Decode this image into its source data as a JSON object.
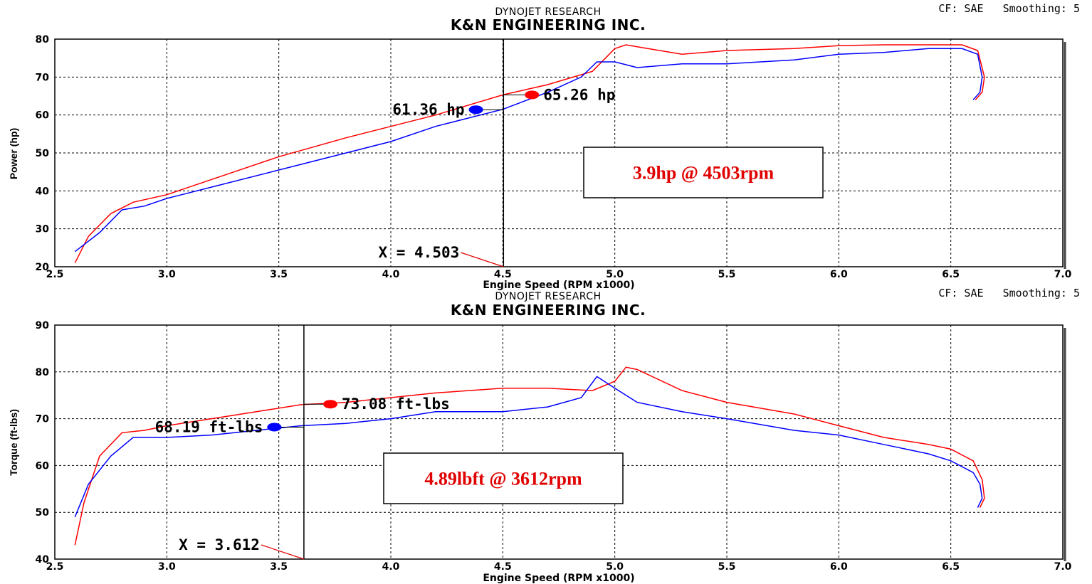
{
  "chart_data": [
    {
      "type": "line",
      "header": "DYNOJET RESEARCH",
      "title": "K&N ENGINEERING INC.",
      "corner_text": "CF: SAE   Smoothing: 5",
      "xlabel": "Engine Speed (RPM x1000)",
      "ylabel": "Power (hp)",
      "xlim": [
        2.5,
        7.0
      ],
      "ylim": [
        20,
        80
      ],
      "xticks": [
        "2.5",
        "3.0",
        "3.5",
        "4.0",
        "4.5",
        "5.0",
        "5.5",
        "6.0",
        "6.5",
        "7.0"
      ],
      "yticks": [
        "20",
        "30",
        "40",
        "50",
        "60",
        "70",
        "80"
      ],
      "grid": true,
      "cursor_x": 4.503,
      "cursor_label": "X = 4.503",
      "markers": [
        {
          "label": "61.36 hp",
          "color": "#0000ff",
          "x": 4.38,
          "y": 61.4
        },
        {
          "label": "65.26 hp",
          "color": "#ff0000",
          "x": 4.63,
          "y": 65.3
        }
      ],
      "callout": "3.9hp @ 4503rpm",
      "series": [
        {
          "color": "#ff0000",
          "x": [
            2.59,
            2.65,
            2.75,
            2.85,
            3.0,
            3.2,
            3.5,
            3.8,
            4.0,
            4.2,
            4.5,
            4.7,
            4.9,
            5.0,
            5.05,
            5.1,
            5.3,
            5.5,
            5.8,
            6.0,
            6.2,
            6.4,
            6.55,
            6.62,
            6.65,
            6.64,
            6.61
          ],
          "y": [
            21,
            28,
            34,
            37,
            39,
            43,
            49,
            54,
            57,
            60,
            65.3,
            68,
            71.5,
            77.5,
            78.5,
            78,
            76,
            77,
            77.5,
            78.3,
            78.5,
            78.5,
            78.5,
            77,
            70,
            66,
            64
          ]
        },
        {
          "color": "#0000ff",
          "x": [
            2.59,
            2.7,
            2.8,
            2.9,
            3.0,
            3.2,
            3.5,
            3.8,
            4.0,
            4.2,
            4.5,
            4.7,
            4.85,
            4.92,
            5.0,
            5.1,
            5.3,
            5.5,
            5.8,
            6.0,
            6.2,
            6.4,
            6.55,
            6.62,
            6.64,
            6.63,
            6.6
          ],
          "y": [
            24,
            29,
            35,
            36,
            38,
            41,
            45.5,
            50,
            53,
            57,
            61.5,
            66,
            70,
            74,
            74,
            72.5,
            73.5,
            73.5,
            74.5,
            76,
            76.5,
            77.5,
            77.5,
            76,
            70,
            66,
            64
          ]
        }
      ]
    },
    {
      "type": "line",
      "header": "DYNOJET RESEARCH",
      "title": "K&N ENGINEERING INC.",
      "corner_text": "CF: SAE   Smoothing: 5",
      "xlabel": "Engine Speed (RPM x1000)",
      "ylabel": "Torque (ft-lbs)",
      "xlim": [
        2.5,
        7.0
      ],
      "ylim": [
        40,
        90
      ],
      "xticks": [
        "2.5",
        "3.0",
        "3.5",
        "4.0",
        "4.5",
        "5.0",
        "5.5",
        "6.0",
        "6.5",
        "7.0"
      ],
      "yticks": [
        "40",
        "50",
        "60",
        "70",
        "80",
        "90"
      ],
      "grid": true,
      "cursor_x": 3.612,
      "cursor_label": "X = 3.612",
      "markers": [
        {
          "label": "68.19 ft-lbs",
          "color": "#0000ff",
          "x": 3.48,
          "y": 68.2
        },
        {
          "label": "73.08 ft-lbs",
          "color": "#ff0000",
          "x": 3.73,
          "y": 73.1
        }
      ],
      "callout": "4.89lbft @ 3612rpm",
      "series": [
        {
          "color": "#ff0000",
          "x": [
            2.59,
            2.63,
            2.7,
            2.8,
            2.9,
            3.0,
            3.2,
            3.4,
            3.6,
            3.8,
            4.0,
            4.2,
            4.5,
            4.7,
            4.9,
            5.0,
            5.05,
            5.1,
            5.3,
            5.5,
            5.8,
            6.0,
            6.2,
            6.4,
            6.5,
            6.6,
            6.64,
            6.65,
            6.63
          ],
          "y": [
            43,
            52,
            62,
            67,
            67.5,
            68.5,
            70,
            71.5,
            73,
            73.5,
            74.5,
            75.5,
            76.5,
            76.5,
            76,
            78,
            81,
            80.5,
            76,
            73.5,
            71,
            68.5,
            66,
            64.5,
            63.5,
            61,
            57,
            53,
            51
          ]
        },
        {
          "color": "#0000ff",
          "x": [
            2.59,
            2.65,
            2.75,
            2.85,
            3.0,
            3.2,
            3.4,
            3.6,
            3.8,
            4.0,
            4.2,
            4.5,
            4.7,
            4.85,
            4.92,
            5.0,
            5.1,
            5.3,
            5.5,
            5.8,
            6.0,
            6.2,
            6.4,
            6.5,
            6.6,
            6.63,
            6.64,
            6.62
          ],
          "y": [
            49,
            56,
            62,
            66,
            66,
            66.5,
            67.5,
            68.5,
            69,
            70,
            71.5,
            71.5,
            72.5,
            74.5,
            79,
            76.5,
            73.5,
            71.5,
            70,
            67.5,
            66.5,
            64.5,
            62.5,
            61,
            58.5,
            56,
            53,
            51
          ]
        }
      ]
    }
  ]
}
